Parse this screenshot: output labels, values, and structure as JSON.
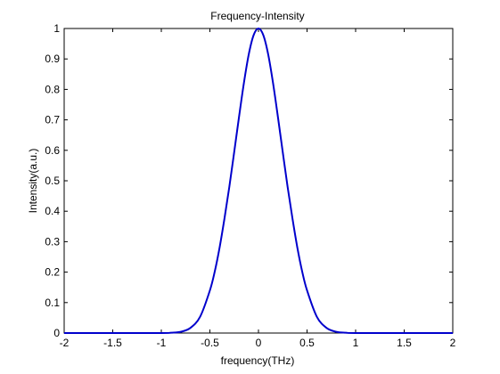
{
  "chart_data": {
    "type": "line",
    "title": "Frequency-Intensity",
    "xlabel": "frequency(THz)",
    "ylabel": "Intensity(a.u.)",
    "xlim": [
      -2,
      2
    ],
    "ylim": [
      0,
      1
    ],
    "xticks": [
      "-2",
      "-1.5",
      "-1",
      "-0.5",
      "0",
      "0.5",
      "1",
      "1.5",
      "2"
    ],
    "yticks": [
      "0",
      "0.1",
      "0.2",
      "0.3",
      "0.4",
      "0.5",
      "0.6",
      "0.7",
      "0.8",
      "0.9",
      "1"
    ],
    "grid": false,
    "series": [
      {
        "color": "#0000cc",
        "x": [
          -2.0,
          -1.5,
          -1.0,
          -0.9,
          -0.8,
          -0.7,
          -0.6,
          -0.5,
          -0.45,
          -0.4,
          -0.35,
          -0.3,
          -0.25,
          -0.2,
          -0.15,
          -0.1,
          -0.05,
          0.0,
          0.05,
          0.1,
          0.15,
          0.2,
          0.25,
          0.3,
          0.35,
          0.4,
          0.45,
          0.5,
          0.6,
          0.7,
          0.8,
          0.9,
          1.0,
          1.5,
          2.0
        ],
        "y": [
          0.0,
          0.0,
          0.0,
          0.001,
          0.004,
          0.017,
          0.054,
          0.14,
          0.202,
          0.281,
          0.376,
          0.48,
          0.594,
          0.71,
          0.821,
          0.915,
          0.978,
          1.0,
          0.978,
          0.915,
          0.821,
          0.71,
          0.594,
          0.48,
          0.376,
          0.281,
          0.202,
          0.14,
          0.054,
          0.017,
          0.004,
          0.001,
          0.0,
          0.0,
          0.0
        ]
      }
    ]
  }
}
